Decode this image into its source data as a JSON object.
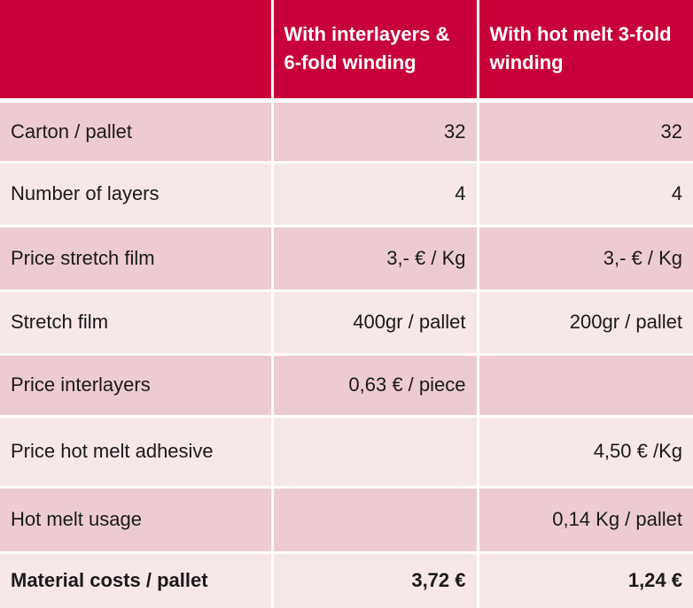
{
  "table": {
    "header": {
      "label_col": "",
      "col1": "With interlayers & 6-fold winding",
      "col2": "With hot melt 3-fold winding"
    },
    "rows": [
      {
        "label": "Carton / pallet",
        "col1": "32",
        "col2": "32"
      },
      {
        "label": "Number of layers",
        "col1": "4",
        "col2": "4"
      },
      {
        "label": "Price stretch film",
        "col1": "3,- € / Kg",
        "col2": "3,- € / Kg"
      },
      {
        "label": "Stretch film",
        "col1": "400gr / pallet",
        "col2": "200gr / pallet"
      },
      {
        "label": "Price interlayers",
        "col1": "0,63 € / piece",
        "col2": ""
      },
      {
        "label": "Price hot melt adhesive",
        "col1": "",
        "col2": "4,50 € /Kg"
      },
      {
        "label": "Hot melt usage",
        "col1": "",
        "col2": "0,14 Kg / pallet"
      },
      {
        "label": "Material costs / pallet",
        "col1": "3,72 €",
        "col2": "1,24 €"
      }
    ]
  },
  "colors": {
    "header_bg": "#c8003a",
    "row_dark": "#ecccd1",
    "row_light": "#f6e7e8"
  }
}
